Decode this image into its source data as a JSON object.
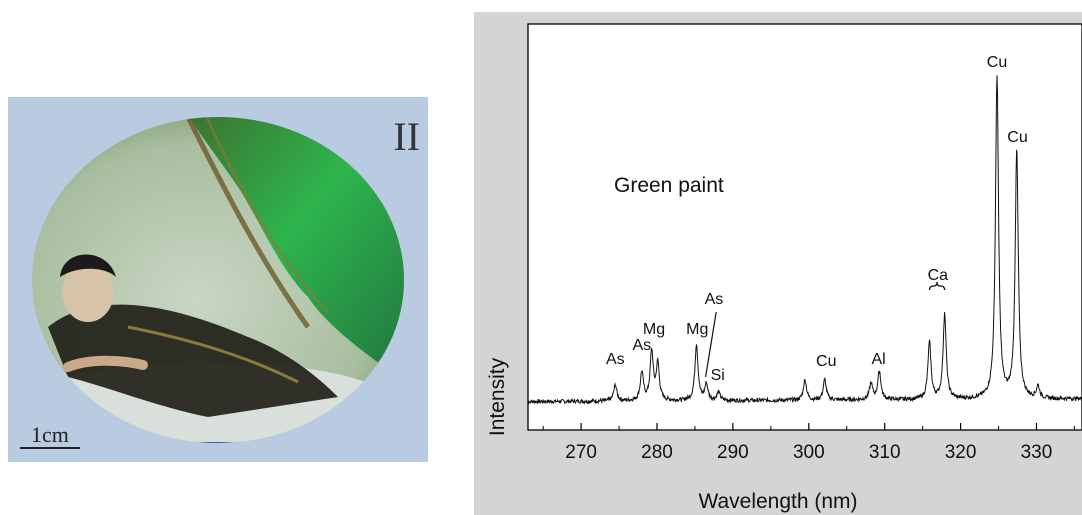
{
  "figure": {
    "panel_label": "II",
    "scale_label": "1cm"
  },
  "chart_data": {
    "type": "line",
    "title": "Green paint",
    "xlabel": "Wavelength (nm)",
    "ylabel": "Intensity",
    "xlim": [
      263,
      336
    ],
    "ylim": [
      0,
      100
    ],
    "x_ticks": [
      270,
      280,
      290,
      300,
      310,
      320,
      330
    ],
    "grid": false,
    "baseline": 7,
    "series": [
      {
        "peaks": [
          {
            "x": 274.5,
            "y": 11
          },
          {
            "x": 278.0,
            "y": 14
          },
          {
            "x": 279.3,
            "y": 19
          },
          {
            "x": 280.1,
            "y": 16
          },
          {
            "x": 285.2,
            "y": 21
          },
          {
            "x": 286.5,
            "y": 11
          },
          {
            "x": 288.1,
            "y": 9
          },
          {
            "x": 299.5,
            "y": 12
          },
          {
            "x": 302.1,
            "y": 12
          },
          {
            "x": 308.2,
            "y": 11
          },
          {
            "x": 309.3,
            "y": 14
          },
          {
            "x": 315.9,
            "y": 21
          },
          {
            "x": 317.9,
            "y": 28
          },
          {
            "x": 324.8,
            "y": 86
          },
          {
            "x": 327.4,
            "y": 68
          },
          {
            "x": 330.2,
            "y": 10
          }
        ]
      }
    ],
    "annotations": [
      {
        "text": "As",
        "x": 274.5
      },
      {
        "text": "As",
        "x": 278.0
      },
      {
        "text": "Mg",
        "x": 279.6
      },
      {
        "text": "Mg",
        "x": 285.3
      },
      {
        "text": "As",
        "x": 287.5
      },
      {
        "text": "Si",
        "x": 288.0
      },
      {
        "text": "Cu",
        "x": 302.3
      },
      {
        "text": "Al",
        "x": 309.2
      },
      {
        "text": "Ca",
        "x": 317.0
      },
      {
        "text": "Cu",
        "x": 324.8
      },
      {
        "text": "Cu",
        "x": 327.5
      }
    ]
  }
}
